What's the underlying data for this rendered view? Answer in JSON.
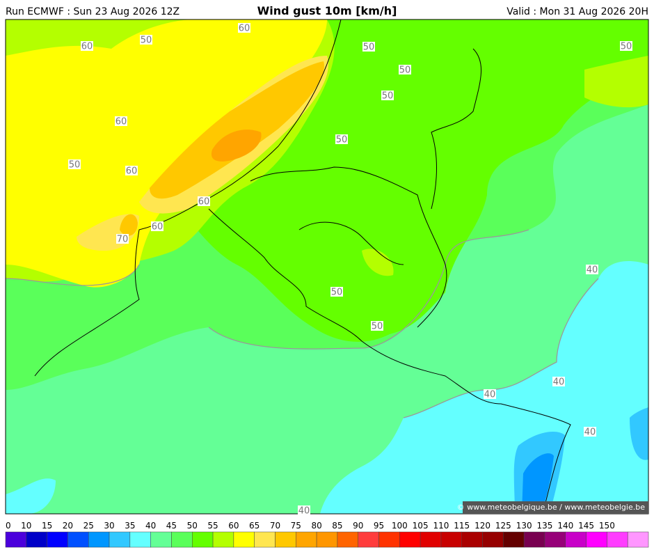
{
  "header": {
    "run": "Run ECMWF : Sun 23 Aug 2026 12Z",
    "title": "Wind gust 10m [km/h]",
    "valid": "Valid : Mon 31 Aug 2026 20H"
  },
  "contour_labels": [
    60,
    50,
    60,
    50,
    50,
    50,
    50,
    60,
    50,
    50,
    60,
    60,
    60,
    70,
    40,
    50,
    50,
    40,
    40,
    40,
    40
  ],
  "credit": "© www.meteobelgique.be / www.meteobelgie.be",
  "legend": {
    "labels": [
      0,
      10,
      15,
      20,
      25,
      30,
      35,
      40,
      45,
      50,
      55,
      60,
      65,
      70,
      75,
      80,
      85,
      90,
      95,
      100,
      105,
      110,
      115,
      120,
      125,
      130,
      135,
      140,
      145,
      150
    ],
    "colors": [
      "#4b00dc",
      "#0000c8",
      "#0000ff",
      "#0050ff",
      "#0096ff",
      "#32c8ff",
      "#64ffff",
      "#64ff96",
      "#5aff5a",
      "#64ff00",
      "#b4ff00",
      "#ffff00",
      "#ffe650",
      "#ffc800",
      "#ffa500",
      "#ff9600",
      "#ff6400",
      "#ff3c3c",
      "#ff3200",
      "#ff0000",
      "#e10000",
      "#c80000",
      "#aa0000",
      "#960000",
      "#640000",
      "#780050",
      "#960078",
      "#c800c8",
      "#ff00ff",
      "#ff3cff",
      "#ff96ff"
    ]
  }
}
